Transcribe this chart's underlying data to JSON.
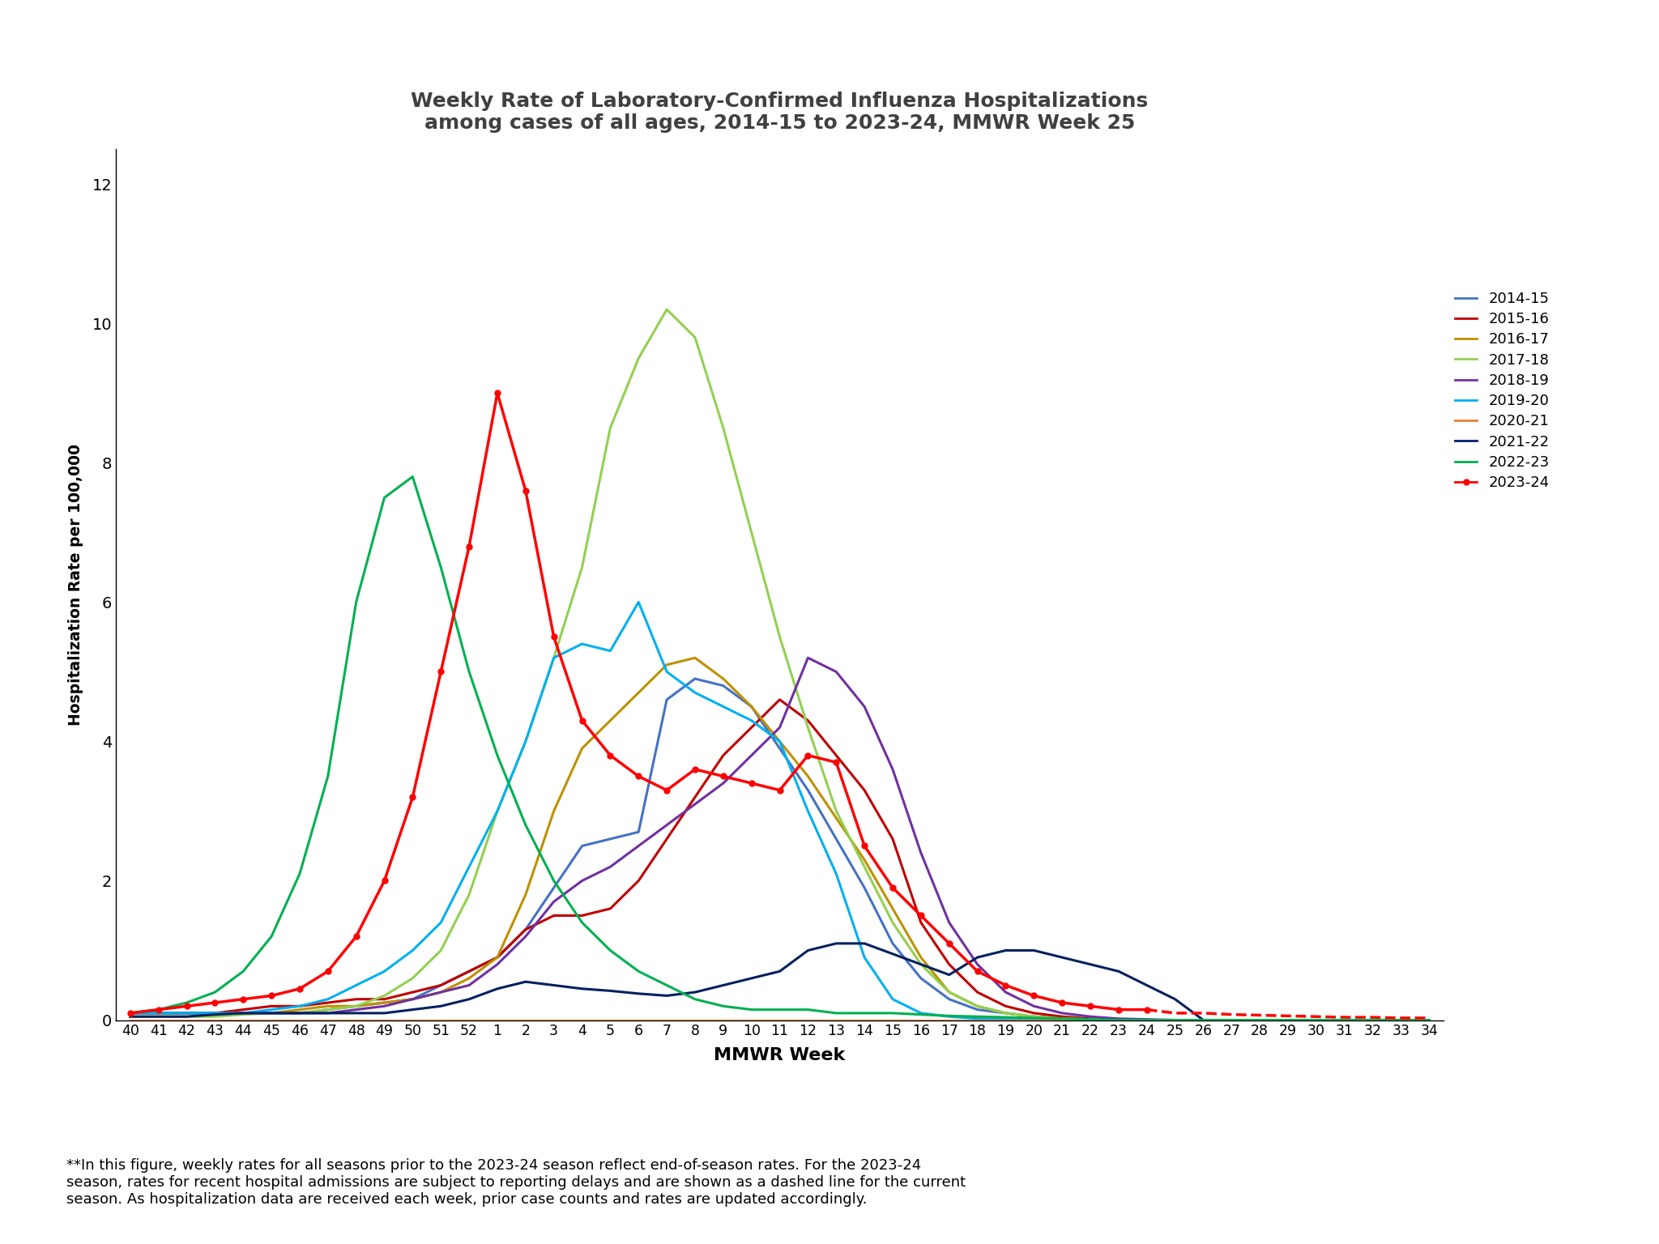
{
  "title": "Weekly Rate of Laboratory-Confirmed Influenza Hospitalizations\namong cases of all ages, 2014-15 to 2023-24, MMWR Week 25",
  "xlabel": "MMWR Week",
  "ylabel": "Hospitalization Rate per 100,000",
  "ylim": [
    0,
    12.5
  ],
  "yticks": [
    0,
    2,
    4,
    6,
    8,
    10,
    12
  ],
  "x_labels": [
    "40",
    "41",
    "42",
    "43",
    "44",
    "45",
    "46",
    "47",
    "48",
    "49",
    "50",
    "51",
    "52",
    "1",
    "2",
    "3",
    "4",
    "5",
    "6",
    "7",
    "8",
    "9",
    "10",
    "11",
    "12",
    "13",
    "14",
    "15",
    "16",
    "17",
    "18",
    "19",
    "20",
    "21",
    "22",
    "23",
    "24",
    "25",
    "26",
    "27",
    "28",
    "29",
    "30",
    "31",
    "32",
    "33",
    "34"
  ],
  "footnote": "**In this figure, weekly rates for all seasons prior to the 2023-24 season reflect end-of-season rates. For the 2023-24\nseason, rates for recent hospital admissions are subject to reporting delays and are shown as a dashed line for the current\nseason. As hospitalization data are received each week, prior case counts and rates are updated accordingly.",
  "seasons": {
    "2014-15": {
      "color": "#4472C4",
      "values": [
        0.1,
        0.1,
        0.1,
        0.1,
        0.1,
        0.1,
        0.1,
        0.15,
        0.2,
        0.25,
        0.3,
        0.5,
        0.7,
        0.9,
        1.3,
        1.9,
        2.5,
        2.6,
        2.7,
        4.6,
        4.9,
        4.8,
        4.5,
        3.9,
        3.3,
        2.6,
        1.9,
        1.1,
        0.6,
        0.3,
        0.15,
        0.1,
        0.05,
        0.03,
        0.02,
        0.01,
        0.0,
        0.0,
        0.0,
        0.0,
        0.0,
        0.0,
        0.0,
        0.0,
        0.0,
        0.0,
        0.0
      ]
    },
    "2015-16": {
      "color": "#C00000",
      "values": [
        0.1,
        0.1,
        0.1,
        0.1,
        0.15,
        0.2,
        0.2,
        0.25,
        0.3,
        0.3,
        0.4,
        0.5,
        0.7,
        0.9,
        1.3,
        1.5,
        1.5,
        1.6,
        2.0,
        2.6,
        3.2,
        3.8,
        4.2,
        4.6,
        4.3,
        3.8,
        3.3,
        2.6,
        1.4,
        0.8,
        0.4,
        0.2,
        0.1,
        0.05,
        0.02,
        0.01,
        0.0,
        0.0,
        0.0,
        0.0,
        0.0,
        0.0,
        0.0,
        0.0,
        0.0,
        0.0,
        0.0
      ]
    },
    "2016-17": {
      "color": "#BF9000",
      "values": [
        0.1,
        0.1,
        0.1,
        0.1,
        0.1,
        0.1,
        0.15,
        0.2,
        0.2,
        0.25,
        0.3,
        0.4,
        0.6,
        0.9,
        1.8,
        3.0,
        3.9,
        4.3,
        4.7,
        5.1,
        5.2,
        4.9,
        4.5,
        4.0,
        3.5,
        2.9,
        2.3,
        1.6,
        0.9,
        0.4,
        0.2,
        0.1,
        0.05,
        0.02,
        0.01,
        0.0,
        0.0,
        0.0,
        0.0,
        0.0,
        0.0,
        0.0,
        0.0,
        0.0,
        0.0,
        0.0,
        0.0
      ]
    },
    "2017-18": {
      "color": "#92D050",
      "values": [
        0.05,
        0.05,
        0.05,
        0.05,
        0.08,
        0.1,
        0.1,
        0.15,
        0.2,
        0.35,
        0.6,
        1.0,
        1.8,
        3.0,
        4.0,
        5.2,
        6.5,
        8.5,
        9.5,
        10.2,
        9.8,
        8.5,
        7.0,
        5.5,
        4.2,
        3.0,
        2.2,
        1.4,
        0.8,
        0.4,
        0.2,
        0.1,
        0.05,
        0.02,
        0.01,
        0.0,
        0.0,
        0.0,
        0.0,
        0.0,
        0.0,
        0.0,
        0.0,
        0.0,
        0.0,
        0.0,
        0.0
      ]
    },
    "2018-19": {
      "color": "#7030A0",
      "values": [
        0.1,
        0.1,
        0.1,
        0.1,
        0.1,
        0.1,
        0.1,
        0.1,
        0.15,
        0.2,
        0.3,
        0.4,
        0.5,
        0.8,
        1.2,
        1.7,
        2.0,
        2.2,
        2.5,
        2.8,
        3.1,
        3.4,
        3.8,
        4.2,
        5.2,
        5.0,
        4.5,
        3.6,
        2.4,
        1.4,
        0.8,
        0.4,
        0.2,
        0.1,
        0.05,
        0.02,
        0.01,
        0.0,
        0.0,
        0.0,
        0.0,
        0.0,
        0.0,
        0.0,
        0.0,
        0.0,
        0.0
      ]
    },
    "2019-20": {
      "color": "#00B0F0",
      "values": [
        0.1,
        0.1,
        0.1,
        0.1,
        0.1,
        0.15,
        0.2,
        0.3,
        0.5,
        0.7,
        1.0,
        1.4,
        2.2,
        3.0,
        4.0,
        5.2,
        5.4,
        5.3,
        6.0,
        5.0,
        4.7,
        4.5,
        4.3,
        4.0,
        3.0,
        2.1,
        0.9,
        0.3,
        0.1,
        0.05,
        0.02,
        0.01,
        0.0,
        0.0,
        0.0,
        0.0,
        0.0,
        0.0,
        0.0,
        0.0,
        0.0,
        0.0,
        0.0,
        0.0,
        0.0,
        0.0,
        0.0
      ]
    },
    "2020-21": {
      "color": "#ED7D31",
      "values": [
        0.0,
        0.0,
        0.0,
        0.0,
        0.0,
        0.0,
        0.0,
        0.0,
        0.0,
        0.0,
        0.0,
        0.0,
        0.0,
        0.0,
        0.0,
        0.0,
        0.0,
        0.0,
        0.0,
        0.0,
        0.0,
        0.0,
        0.0,
        0.0,
        0.0,
        0.0,
        0.0,
        0.0,
        0.0,
        0.0,
        0.0,
        0.0,
        0.0,
        0.0,
        0.0,
        0.0,
        0.0,
        0.0,
        0.0,
        0.0,
        0.0,
        0.0,
        0.0,
        0.0,
        0.0,
        0.0,
        0.0
      ]
    },
    "2021-22": {
      "color": "#002060",
      "values": [
        0.05,
        0.05,
        0.05,
        0.08,
        0.1,
        0.1,
        0.1,
        0.1,
        0.1,
        0.1,
        0.15,
        0.2,
        0.3,
        0.45,
        0.55,
        0.5,
        0.45,
        0.42,
        0.38,
        0.35,
        0.4,
        0.5,
        0.6,
        0.7,
        1.0,
        1.1,
        1.1,
        0.95,
        0.8,
        0.65,
        0.9,
        1.0,
        1.0,
        0.9,
        0.8,
        0.7,
        0.5,
        0.3,
        0.0,
        0.0,
        0.0,
        0.0,
        0.0,
        0.0,
        0.0,
        0.0,
        0.0
      ]
    },
    "2022-23": {
      "color": "#00B050",
      "values": [
        0.1,
        0.15,
        0.25,
        0.4,
        0.7,
        1.2,
        2.1,
        3.5,
        6.0,
        7.5,
        7.8,
        6.5,
        5.0,
        3.8,
        2.8,
        2.0,
        1.4,
        1.0,
        0.7,
        0.5,
        0.3,
        0.2,
        0.15,
        0.15,
        0.15,
        0.1,
        0.1,
        0.1,
        0.08,
        0.06,
        0.05,
        0.04,
        0.03,
        0.02,
        0.01,
        0.0,
        0.0,
        0.0,
        0.0,
        0.0,
        0.0,
        0.0,
        0.0,
        0.0,
        0.0,
        0.0,
        0.0
      ]
    },
    "2023-24": {
      "color": "#FF0000",
      "solid_count": 37,
      "values": [
        0.1,
        0.15,
        0.2,
        0.25,
        0.3,
        0.35,
        0.45,
        0.7,
        1.2,
        2.0,
        3.2,
        5.0,
        6.8,
        9.0,
        7.6,
        5.5,
        4.3,
        3.8,
        3.5,
        3.3,
        3.6,
        3.5,
        3.4,
        3.3,
        3.8,
        3.7,
        2.5,
        1.9,
        1.5,
        1.1,
        0.7,
        0.5,
        0.35,
        0.25,
        0.2,
        0.15,
        0.15,
        0.1,
        0.1,
        0.08,
        0.07,
        0.06,
        0.05,
        0.04,
        0.04,
        0.03,
        0.03
      ]
    }
  }
}
